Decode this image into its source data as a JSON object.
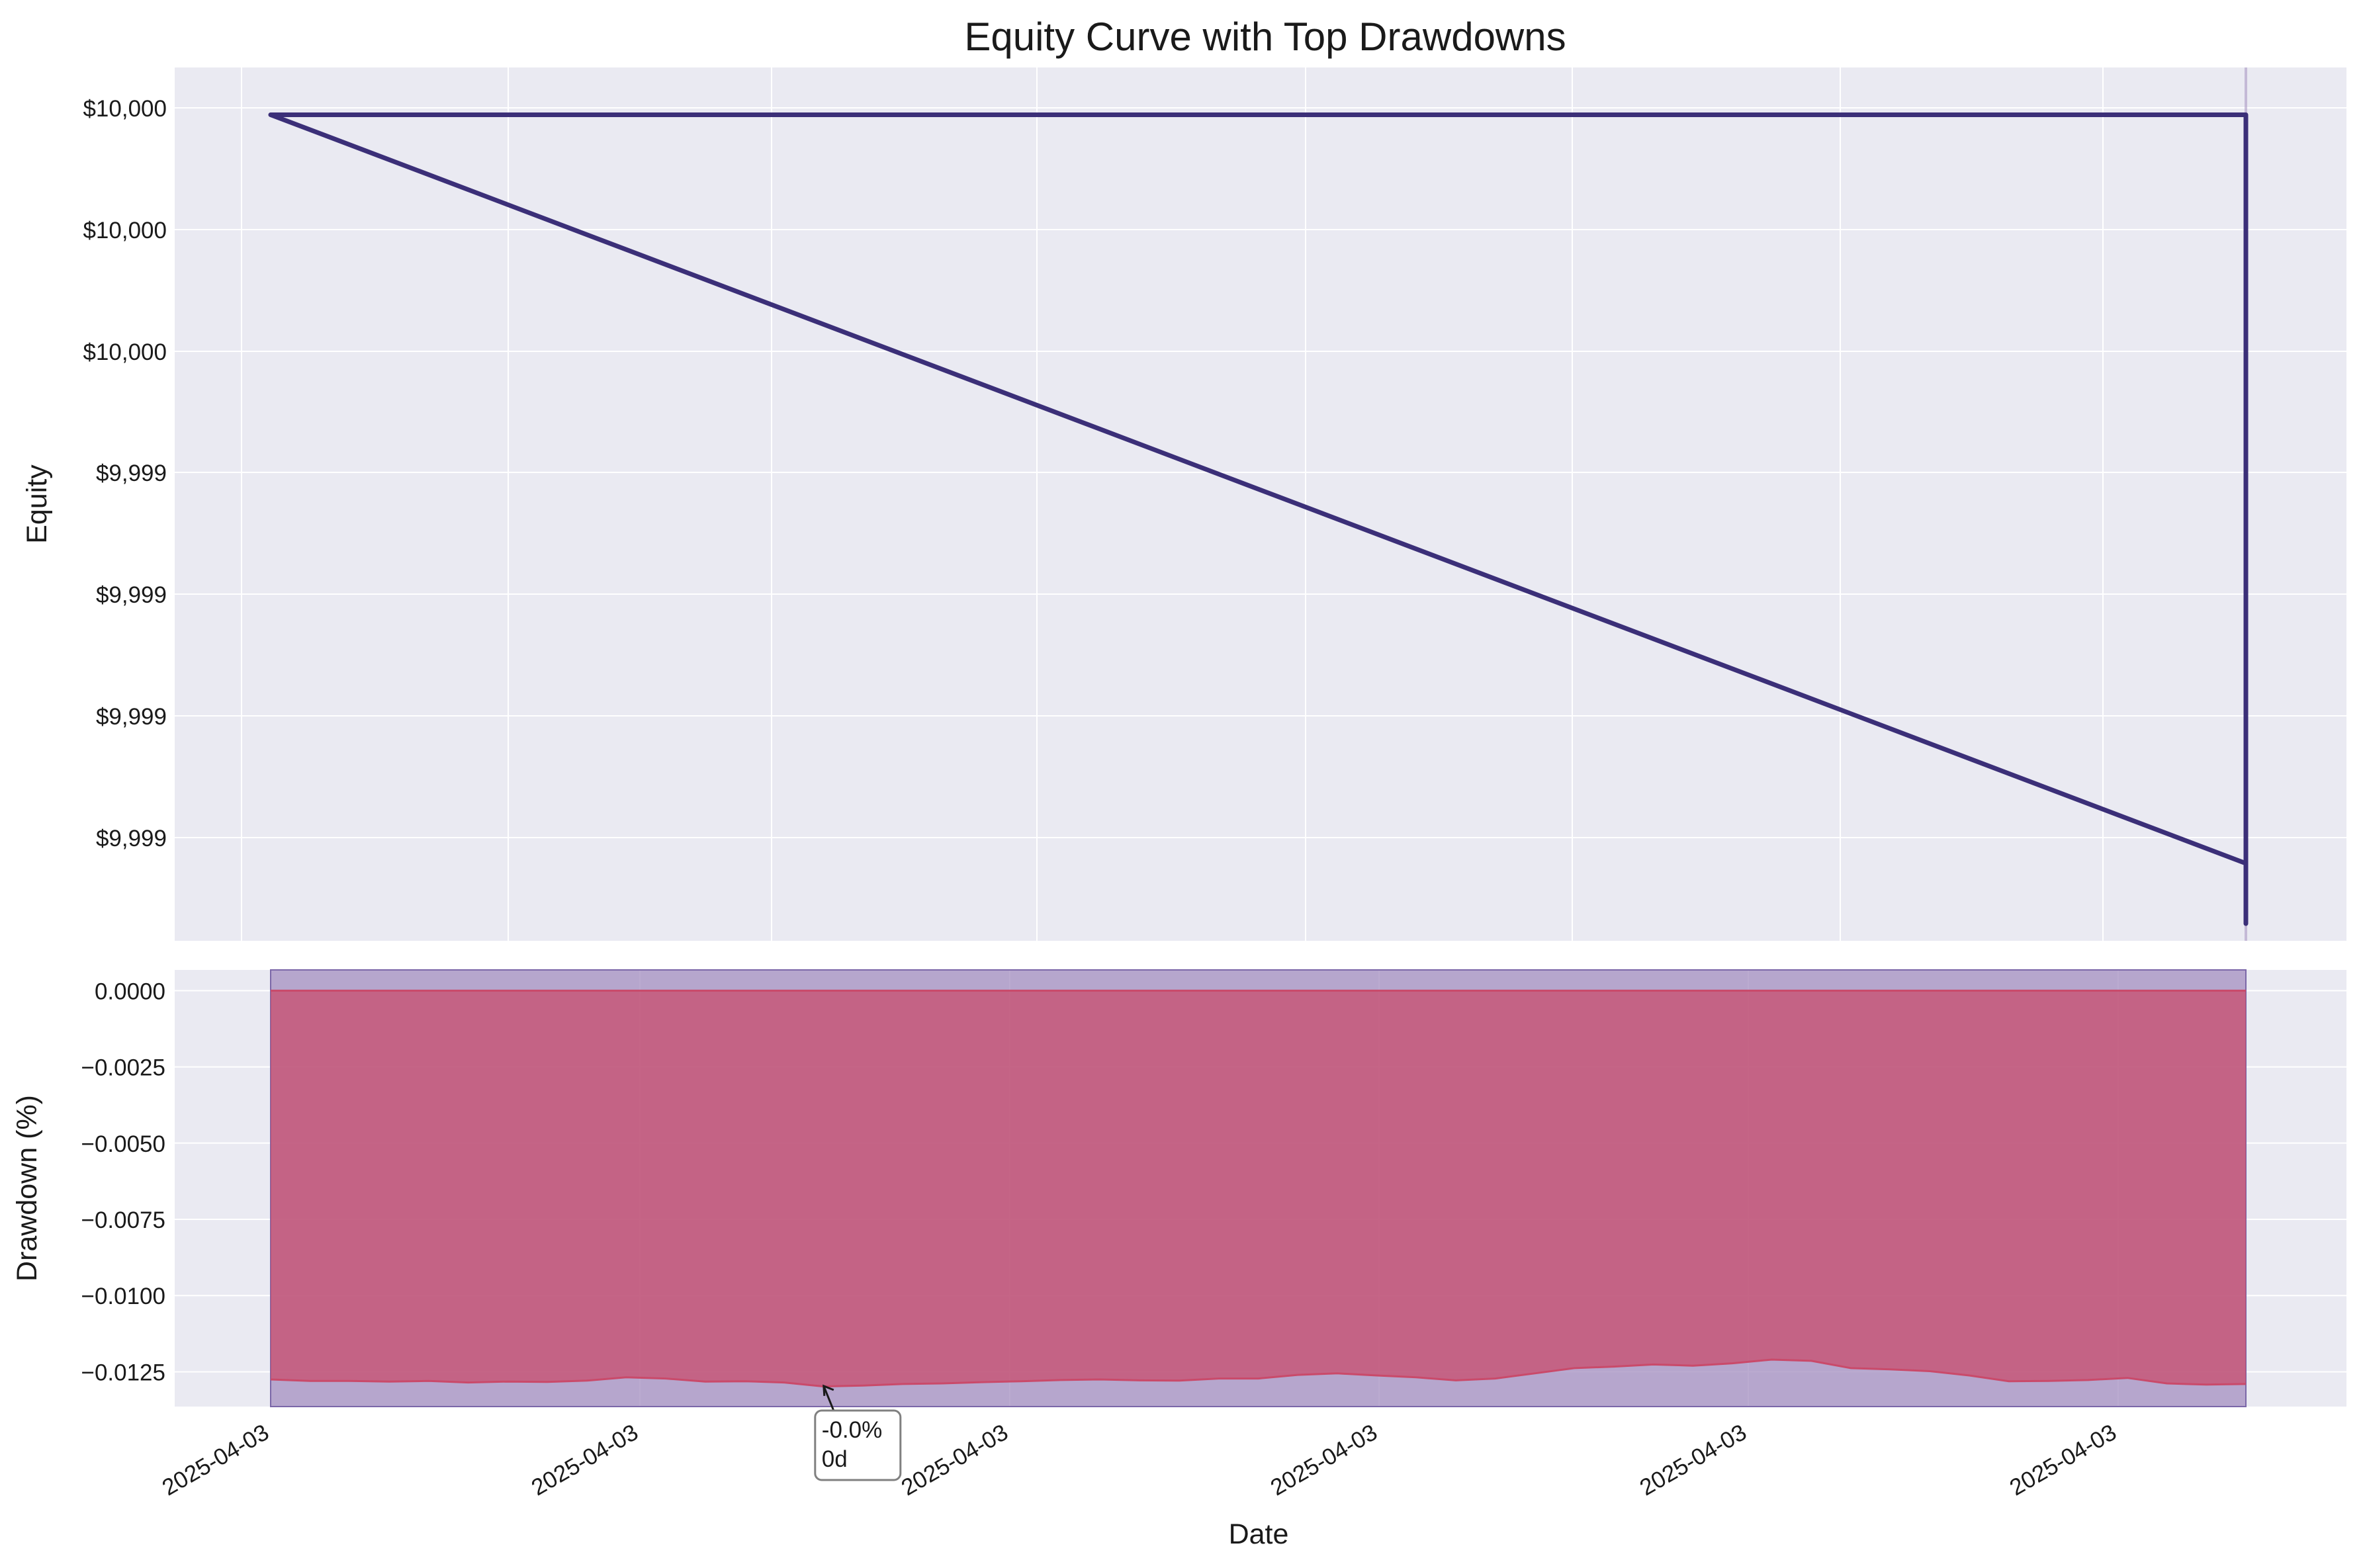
{
  "chart_data": [
    {
      "type": "line",
      "title": "Equity Curve with Top Drawdowns",
      "xlabel": "",
      "ylabel": "Equity",
      "ytick_labels": [
        "$10,000",
        "$10,000",
        "$10,000",
        "$9,999",
        "$9,999",
        "$9,999",
        "$9,999"
      ],
      "grid": true,
      "background": "#eaeaf2",
      "series": [
        {
          "color": "#3b2f78",
          "points": [
            {
              "x": 0.0,
              "y": 10000.0
            },
            {
              "x": 1.0,
              "y": 9999.13
            },
            {
              "x": 1.0,
              "y": 9999.06
            },
            {
              "x": 1.0,
              "y": 9999.2
            },
            {
              "x": 1.0,
              "y": 10000.0
            },
            {
              "x": 0.0,
              "y": 10000.0
            }
          ]
        }
      ],
      "shaded_spans": [
        {
          "from": 1.0,
          "to": 1.0,
          "color": "#a48fc0"
        }
      ]
    },
    {
      "type": "area",
      "xlabel": "Date",
      "ylabel": "Drawdown (%)",
      "ytick_labels": [
        "0.0000",
        "−0.0025",
        "−0.0050",
        "−0.0075",
        "−0.0100",
        "−0.0125"
      ],
      "ytick_values": [
        0.0,
        -0.0025,
        -0.005,
        -0.0075,
        -0.01,
        -0.0125
      ],
      "xtick_labels": [
        "2025-04-03",
        "2025-04-03",
        "2025-04-03",
        "2025-04-03",
        "2025-04-03",
        "2025-04-03"
      ],
      "ylim": [
        -0.01364,
        0.00068
      ],
      "grid": true,
      "background": "#eaeaf2",
      "fill_color": "#c94a6a",
      "span_color": "#a48fc0",
      "annotation": {
        "line1": "-0.0%",
        "line2": "0d",
        "x": 0.28,
        "y": -0.0129
      },
      "series": [
        {
          "x": [
            0,
            0.02,
            0.04,
            0.06,
            0.08,
            0.1,
            0.12,
            0.14,
            0.16,
            0.18,
            0.2,
            0.22,
            0.24,
            0.26,
            0.28,
            0.3,
            0.32,
            0.34,
            0.36,
            0.38,
            0.4,
            0.42,
            0.44,
            0.46,
            0.48,
            0.5,
            0.52,
            0.54,
            0.56,
            0.58,
            0.6,
            0.62,
            0.64,
            0.66,
            0.68,
            0.7,
            0.72,
            0.74,
            0.76,
            0.78,
            0.8,
            0.82,
            0.84,
            0.86,
            0.88,
            0.9,
            0.92,
            0.94,
            0.96,
            0.98,
            1.0
          ],
          "values": [
            -0.01275,
            -0.0128,
            -0.0128,
            -0.01282,
            -0.0128,
            -0.01285,
            -0.01282,
            -0.01283,
            -0.01279,
            -0.01268,
            -0.01272,
            -0.01282,
            -0.01281,
            -0.01285,
            -0.01298,
            -0.01295,
            -0.0129,
            -0.01288,
            -0.01284,
            -0.01281,
            -0.01277,
            -0.01275,
            -0.01278,
            -0.01279,
            -0.01272,
            -0.01272,
            -0.0126,
            -0.01255,
            -0.01262,
            -0.01268,
            -0.01278,
            -0.01272,
            -0.01255,
            -0.01238,
            -0.01233,
            -0.01226,
            -0.0123,
            -0.01222,
            -0.0121,
            -0.01214,
            -0.01238,
            -0.01242,
            -0.01248,
            -0.01262,
            -0.01281,
            -0.0128,
            -0.01277,
            -0.0127,
            -0.01288,
            -0.01292,
            -0.0129
          ]
        }
      ]
    }
  ]
}
